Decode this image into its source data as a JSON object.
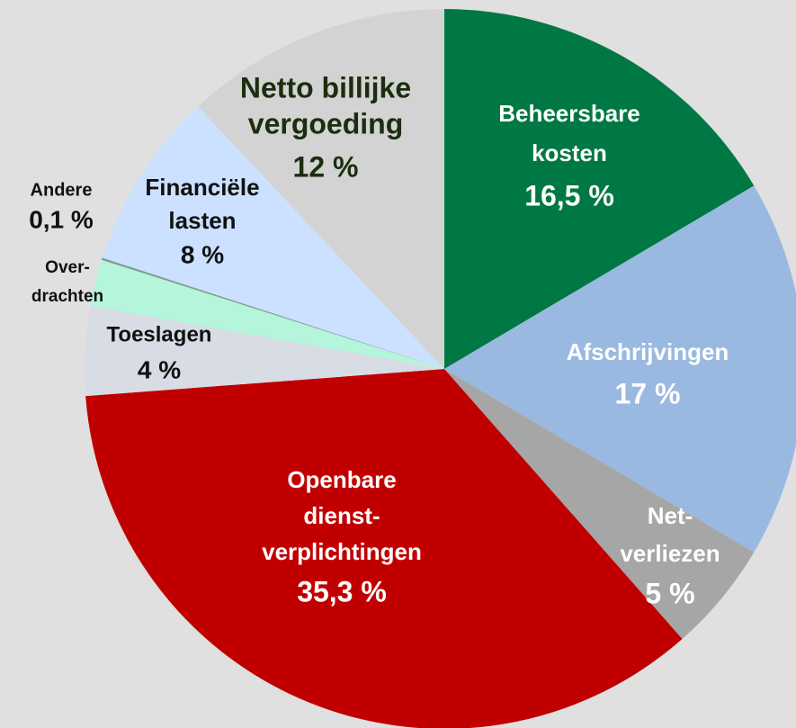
{
  "chart_data": {
    "type": "pie",
    "categories": [
      [
        "Beheersbare",
        "kosten"
      ],
      [
        "Afschrijvingen"
      ],
      [
        "Net-",
        "verliezen"
      ],
      [
        "Openbare",
        "dienst-",
        "verplichtingen"
      ],
      [
        "Toeslagen"
      ],
      [
        "Over-",
        "drachten"
      ],
      [
        "Andere"
      ],
      [
        "Financiële",
        "lasten"
      ],
      [
        "Netto billijke",
        "vergoeding"
      ]
    ],
    "values": [
      16.5,
      17,
      5,
      35.3,
      4,
      2.1,
      0.1,
      8,
      12
    ],
    "value_labels": [
      "16,5 %",
      "17 %",
      "5 %",
      "35,3 %",
      "4 %",
      null,
      "0,1 %",
      "8 %",
      "12 %"
    ],
    "colors": [
      "#007843",
      "#9ab9e0",
      "#a6a6a6",
      "#c00000",
      "#d8dce4",
      "#b4f5dc",
      "#7f9f8c",
      "#cce0ff",
      "#d3d3d3"
    ]
  }
}
